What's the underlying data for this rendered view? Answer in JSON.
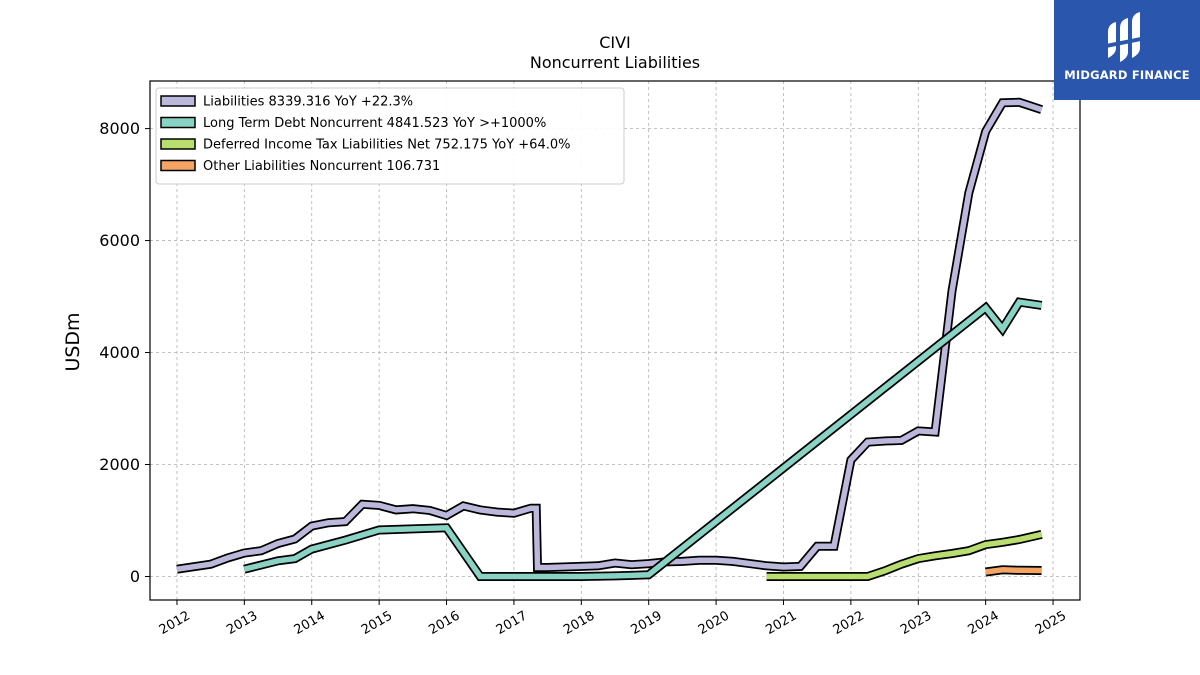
{
  "chart_data": {
    "type": "line",
    "title": "CIVI",
    "subtitle": "Noncurrent  Liabilities",
    "ylabel": "USDm",
    "xlabel": "",
    "xlim": [
      2011.6,
      2025.4
    ],
    "ylim": [
      -420,
      8850
    ],
    "yticks": [
      0,
      2000,
      4000,
      6000,
      8000
    ],
    "xticks": [
      2012,
      2013,
      2014,
      2015,
      2016,
      2017,
      2018,
      2019,
      2020,
      2021,
      2022,
      2023,
      2024,
      2025
    ],
    "grid": true,
    "legend_position": "top-left",
    "series": [
      {
        "name": "Liabilities  8339.316 YoY +22.3%",
        "color": "#bcb8db",
        "points": [
          [
            2012.0,
            130
          ],
          [
            2012.5,
            220
          ],
          [
            2012.75,
            330
          ],
          [
            2013.0,
            420
          ],
          [
            2013.25,
            460
          ],
          [
            2013.5,
            590
          ],
          [
            2013.75,
            670
          ],
          [
            2014.0,
            900
          ],
          [
            2014.25,
            960
          ],
          [
            2014.5,
            980
          ],
          [
            2014.75,
            1290
          ],
          [
            2015.0,
            1270
          ],
          [
            2015.25,
            1190
          ],
          [
            2015.5,
            1210
          ],
          [
            2015.75,
            1180
          ],
          [
            2016.0,
            1090
          ],
          [
            2016.25,
            1260
          ],
          [
            2016.5,
            1190
          ],
          [
            2016.75,
            1150
          ],
          [
            2017.0,
            1130
          ],
          [
            2017.25,
            1220
          ],
          [
            2017.33,
            1220
          ],
          [
            2017.35,
            160
          ],
          [
            2017.5,
            160
          ],
          [
            2018.0,
            180
          ],
          [
            2018.25,
            190
          ],
          [
            2018.5,
            240
          ],
          [
            2018.75,
            210
          ],
          [
            2019.0,
            230
          ],
          [
            2019.25,
            260
          ],
          [
            2019.5,
            270
          ],
          [
            2019.75,
            290
          ],
          [
            2020.0,
            290
          ],
          [
            2020.25,
            270
          ],
          [
            2020.5,
            230
          ],
          [
            2020.75,
            190
          ],
          [
            2021.0,
            170
          ],
          [
            2021.25,
            180
          ],
          [
            2021.5,
            540
          ],
          [
            2021.75,
            540
          ],
          [
            2022.0,
            2080
          ],
          [
            2022.25,
            2400
          ],
          [
            2022.5,
            2420
          ],
          [
            2022.75,
            2430
          ],
          [
            2023.0,
            2600
          ],
          [
            2023.25,
            2580
          ],
          [
            2023.5,
            5100
          ],
          [
            2023.75,
            6850
          ],
          [
            2024.0,
            7950
          ],
          [
            2024.25,
            8460
          ],
          [
            2024.5,
            8470
          ],
          [
            2024.83,
            8339.316
          ]
        ]
      },
      {
        "name": "Long Term Debt Noncurrent  4841.523 YoY >+1000%",
        "color": "#88d3c3",
        "points": [
          [
            2013.0,
            130
          ],
          [
            2013.5,
            280
          ],
          [
            2013.75,
            320
          ],
          [
            2014.0,
            490
          ],
          [
            2014.5,
            650
          ],
          [
            2015.0,
            830
          ],
          [
            2015.5,
            850
          ],
          [
            2016.0,
            870
          ],
          [
            2016.5,
            0
          ],
          [
            2017.0,
            0
          ],
          [
            2017.5,
            0
          ],
          [
            2018.0,
            0
          ],
          [
            2018.5,
            10
          ],
          [
            2019.0,
            30
          ],
          [
            2024.0,
            4800
          ],
          [
            2024.25,
            4420
          ],
          [
            2024.5,
            4900
          ],
          [
            2024.83,
            4841.523
          ]
        ]
      },
      {
        "name": "Deferred Income Tax Liabilities Net  752.175 YoY +64.0%",
        "color": "#b8de6f",
        "points": [
          [
            2020.75,
            0
          ],
          [
            2021.0,
            0
          ],
          [
            2021.5,
            0
          ],
          [
            2022.0,
            0
          ],
          [
            2022.25,
            0
          ],
          [
            2022.5,
            100
          ],
          [
            2022.75,
            220
          ],
          [
            2023.0,
            320
          ],
          [
            2023.25,
            370
          ],
          [
            2023.5,
            410
          ],
          [
            2023.75,
            460
          ],
          [
            2024.0,
            570
          ],
          [
            2024.25,
            610
          ],
          [
            2024.5,
            660
          ],
          [
            2024.83,
            752.175
          ]
        ]
      },
      {
        "name": "Other Liabilities Noncurrent  106.731",
        "color": "#f4a563",
        "points": [
          [
            2024.0,
            80
          ],
          [
            2024.25,
            120
          ],
          [
            2024.5,
            110
          ],
          [
            2024.83,
            106.731
          ]
        ]
      }
    ]
  },
  "logo": {
    "text": "MIDGARD FINANCE",
    "color": "#2b56ad"
  }
}
